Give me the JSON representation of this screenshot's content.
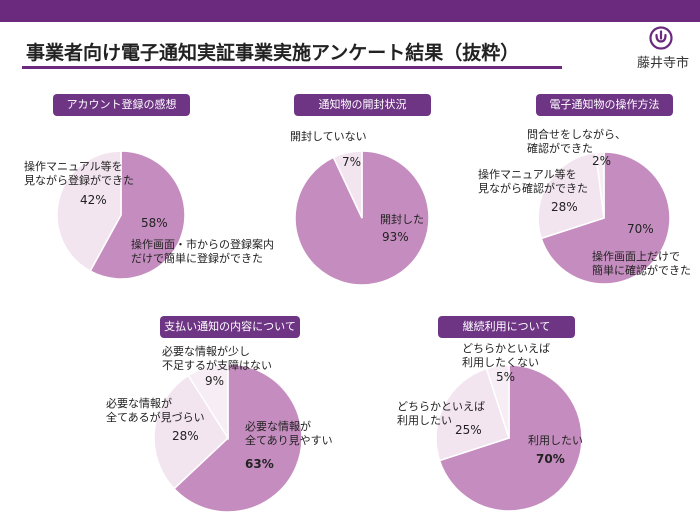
{
  "header": {
    "title": "事業者向け電子通知実証事業実施アンケート結果（抜粋）",
    "city_name": "藤井寺市",
    "accent_color": "#6b2a7d",
    "logo_icon": "city-emblem-icon"
  },
  "colors": {
    "main_slice": "#c58dbf",
    "light_slice": "#f2e5f0",
    "lighter_slice": "#f7edf5",
    "pill_bg": "#6f3585"
  },
  "chart_data": [
    {
      "type": "pie",
      "title": "アカウント登録の感想",
      "slices": [
        {
          "label": "操作画面・市からの登録案内だけで簡単に登録ができた",
          "value": 58,
          "pct_text": "58%",
          "label_lines": [
            "操作画面・市からの登録案内",
            "だけで簡単に登録ができた"
          ]
        },
        {
          "label": "操作マニュアル等を見ながら登録ができた",
          "value": 42,
          "pct_text": "42%",
          "label_lines": [
            "操作マニュアル等を",
            "見ながら登録ができた"
          ]
        }
      ]
    },
    {
      "type": "pie",
      "title": "通知物の開封状況",
      "slices": [
        {
          "label": "開封した",
          "value": 93,
          "pct_text": "93%",
          "label_lines": [
            "開封した"
          ]
        },
        {
          "label": "開封していない",
          "value": 7,
          "pct_text": "7%",
          "label_lines": [
            "開封していない"
          ]
        }
      ]
    },
    {
      "type": "pie",
      "title": "電子通知物の操作方法",
      "slices": [
        {
          "label": "操作画面上だけで簡単に確認ができた",
          "value": 70,
          "pct_text": "70%",
          "label_lines": [
            "操作画面上だけで",
            "簡単に確認ができた"
          ]
        },
        {
          "label": "操作マニュアル等を見ながら確認ができた",
          "value": 28,
          "pct_text": "28%",
          "label_lines": [
            "操作マニュアル等を",
            "見ながら確認ができた"
          ]
        },
        {
          "label": "問合せをしながら、確認ができた",
          "value": 2,
          "pct_text": "2%",
          "label_lines": [
            "問合せをしながら、",
            "確認ができた"
          ]
        }
      ]
    },
    {
      "type": "pie",
      "title": "支払い通知の内容について",
      "slices": [
        {
          "label": "必要な情報が全てあり見やすい",
          "value": 63,
          "pct_text": "63%",
          "label_lines": [
            "必要な情報が",
            "全てあり見やすい"
          ]
        },
        {
          "label": "必要な情報が全てあるが見づらい",
          "value": 28,
          "pct_text": "28%",
          "label_lines": [
            "必要な情報が",
            "全てあるが見づらい"
          ]
        },
        {
          "label": "必要な情報が少し不足するが支障はない",
          "value": 9,
          "pct_text": "9%",
          "label_lines": [
            "必要な情報が少し",
            "不足するが支障はない"
          ]
        }
      ]
    },
    {
      "type": "pie",
      "title": "継続利用について",
      "slices": [
        {
          "label": "利用したい",
          "value": 70,
          "pct_text": "70%",
          "label_lines": [
            "利用したい"
          ]
        },
        {
          "label": "どちらかといえば利用したい",
          "value": 25,
          "pct_text": "25%",
          "label_lines": [
            "どちらかといえば",
            "利用したい"
          ]
        },
        {
          "label": "どちらかといえば利用したくない",
          "value": 5,
          "pct_text": "5%",
          "label_lines": [
            "どちらかといえば",
            "利用したくない"
          ]
        }
      ]
    }
  ]
}
